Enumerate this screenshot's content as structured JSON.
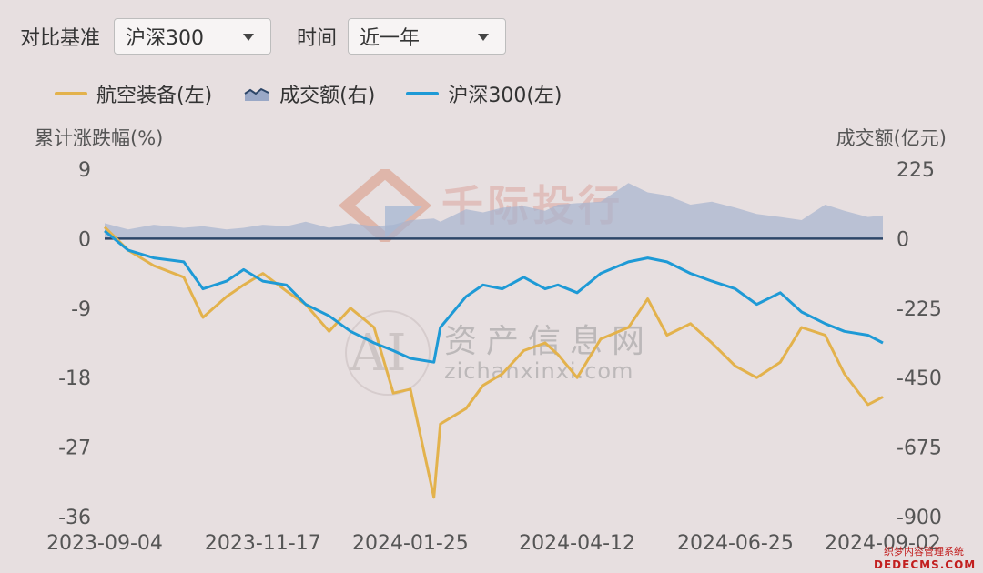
{
  "controls": {
    "benchmark_label": "对比基准",
    "benchmark_value": "沪深300",
    "period_label": "时间",
    "period_value": "近一年"
  },
  "watermarks": {
    "primary": "千际投行",
    "secondary_cn": "资产信息网",
    "secondary_en": "zichanxinxi.com",
    "secondary_logo": "AI",
    "corner_cn": "织梦内容管理系统",
    "corner_en": "DEDECMS.COM"
  },
  "colors": {
    "aviation": "#e3b24c",
    "csi300": "#1e9ad6",
    "volume": "#a6b3cf",
    "zero_line": "#2d4668"
  },
  "chart_data": {
    "type": "line",
    "legend_position": "top-left",
    "ylabel_left": "累计涨跌幅(%)",
    "ylabel_right": "成交额(亿元)",
    "y_left_ticks": [
      "9",
      "0",
      "-9",
      "-18",
      "-27",
      "-36"
    ],
    "y_right_ticks": [
      "225",
      "0",
      "-225",
      "-450",
      "-675",
      "-900"
    ],
    "ylim_left": [
      -36,
      9
    ],
    "ylim_right": [
      -900,
      225
    ],
    "x_tick_labels": [
      "2023-09-04",
      "2023-11-17",
      "2024-01-25",
      "2024-04-12",
      "2024-06-25",
      "2024-09-02"
    ],
    "x_range": [
      "2023-09-04",
      "2024-09-02"
    ],
    "grid": false,
    "series": [
      {
        "name": "航空装备(左)",
        "axis": "left",
        "style": "line",
        "x": [
          "2023-09-04",
          "2023-09-15",
          "2023-09-27",
          "2023-10-11",
          "2023-10-20",
          "2023-10-31",
          "2023-11-08",
          "2023-11-17",
          "2023-11-28",
          "2023-12-07",
          "2023-12-18",
          "2023-12-28",
          "2024-01-08",
          "2024-01-17",
          "2024-01-25",
          "2024-02-05",
          "2024-02-08",
          "2024-02-20",
          "2024-02-28",
          "2024-03-08",
          "2024-03-18",
          "2024-03-28",
          "2024-04-03",
          "2024-04-12",
          "2024-04-23",
          "2024-05-06",
          "2024-05-15",
          "2024-05-24",
          "2024-06-04",
          "2024-06-14",
          "2024-06-25",
          "2024-07-05",
          "2024-07-16",
          "2024-07-26",
          "2024-08-06",
          "2024-08-15",
          "2024-08-26",
          "2024-09-02"
        ],
        "values": [
          1.5,
          -1.5,
          -3.5,
          -5.0,
          -10.2,
          -7.5,
          -6.0,
          -4.5,
          -6.8,
          -8.5,
          -12.0,
          -9.0,
          -11.5,
          -20.0,
          -19.5,
          -33.5,
          -24.0,
          -22.0,
          -19.0,
          -17.5,
          -14.5,
          -13.5,
          -15.0,
          -18.0,
          -13.0,
          -11.5,
          -7.8,
          -12.5,
          -11.0,
          -13.5,
          -16.5,
          -18.0,
          -16.0,
          -11.5,
          -12.5,
          -17.5,
          -21.5,
          -20.5
        ]
      },
      {
        "name": "沪深300(左)",
        "axis": "left",
        "style": "line",
        "x": [
          "2023-09-04",
          "2023-09-15",
          "2023-09-27",
          "2023-10-11",
          "2023-10-20",
          "2023-10-31",
          "2023-11-08",
          "2023-11-17",
          "2023-11-28",
          "2023-12-07",
          "2023-12-18",
          "2023-12-28",
          "2024-01-08",
          "2024-01-17",
          "2024-01-25",
          "2024-02-05",
          "2024-02-08",
          "2024-02-20",
          "2024-02-28",
          "2024-03-08",
          "2024-03-18",
          "2024-03-28",
          "2024-04-03",
          "2024-04-12",
          "2024-04-23",
          "2024-05-06",
          "2024-05-15",
          "2024-05-24",
          "2024-06-04",
          "2024-06-14",
          "2024-06-25",
          "2024-07-05",
          "2024-07-16",
          "2024-07-26",
          "2024-08-06",
          "2024-08-15",
          "2024-08-26",
          "2024-09-02"
        ],
        "values": [
          1.0,
          -1.5,
          -2.5,
          -3.0,
          -6.5,
          -5.5,
          -4.0,
          -5.5,
          -6.0,
          -8.5,
          -10.0,
          -12.0,
          -13.5,
          -14.5,
          -15.5,
          -16.0,
          -11.5,
          -7.5,
          -6.0,
          -6.5,
          -5.0,
          -6.5,
          -6.0,
          -7.0,
          -4.5,
          -3.0,
          -2.5,
          -3.0,
          -4.5,
          -5.5,
          -6.5,
          -8.5,
          -7.0,
          -9.5,
          -11.0,
          -12.0,
          -12.5,
          -13.5
        ]
      },
      {
        "name": "成交额(右)",
        "axis": "right",
        "style": "area",
        "x": [
          "2023-09-04",
          "2023-09-15",
          "2023-09-27",
          "2023-10-11",
          "2023-10-20",
          "2023-10-31",
          "2023-11-08",
          "2023-11-17",
          "2023-11-28",
          "2023-12-07",
          "2023-12-18",
          "2023-12-28",
          "2024-01-08",
          "2024-01-17",
          "2024-01-25",
          "2024-02-05",
          "2024-02-08",
          "2024-02-20",
          "2024-02-28",
          "2024-03-08",
          "2024-03-18",
          "2024-03-28",
          "2024-04-03",
          "2024-04-12",
          "2024-04-23",
          "2024-05-06",
          "2024-05-15",
          "2024-05-24",
          "2024-06-04",
          "2024-06-14",
          "2024-06-25",
          "2024-07-05",
          "2024-07-16",
          "2024-07-26",
          "2024-08-06",
          "2024-08-15",
          "2024-08-26",
          "2024-09-02"
        ],
        "values": [
          50,
          30,
          45,
          35,
          40,
          30,
          35,
          45,
          40,
          55,
          35,
          50,
          40,
          45,
          60,
          65,
          55,
          95,
          85,
          100,
          105,
          90,
          110,
          115,
          120,
          180,
          150,
          140,
          110,
          120,
          100,
          80,
          70,
          60,
          110,
          90,
          70,
          75
        ]
      }
    ]
  }
}
